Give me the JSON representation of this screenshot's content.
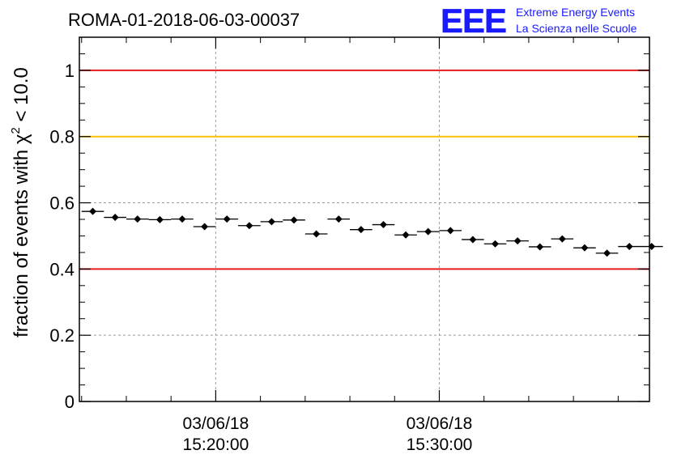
{
  "chart_data": {
    "type": "scatter",
    "title": "ROMA-01-2018-06-03-00037",
    "ylabel": "fraction of events with χ² < 10.0",
    "ylabel_parts": {
      "before": "fraction of events with χ",
      "superscript": "2",
      "after": " < 10.0"
    },
    "xlabel": "",
    "ylim": [
      0,
      1.1
    ],
    "xlim": [
      -6.1,
      19.4
    ],
    "x_unit": "minutes relative to 03/06/18 15:20:00",
    "yticks": [
      0,
      0.2,
      0.4,
      0.6,
      0.8,
      1
    ],
    "ytick_labels": [
      "0",
      "0.2",
      "0.4",
      "0.6",
      "0.8",
      "1"
    ],
    "xticks": [
      {
        "x": 0,
        "date": "03/06/18",
        "time": "15:20:00"
      },
      {
        "x": 10,
        "date": "03/06/18",
        "time": "15:30:00"
      }
    ],
    "grid": true,
    "reference_lines": [
      {
        "y": 1.0,
        "color": "#e41a1c"
      },
      {
        "y": 0.8,
        "color": "#ffc000"
      },
      {
        "y": 0.4,
        "color": "#e41a1c"
      }
    ],
    "series": [
      {
        "x_start": -5.5,
        "x_step": 1,
        "x_halfwidth": 0.5,
        "y_error": 0.008,
        "values": [
          0.574,
          0.556,
          0.551,
          0.549,
          0.551,
          0.528,
          0.551,
          0.531,
          0.543,
          0.548,
          0.506,
          0.551,
          0.519,
          0.534,
          0.503,
          0.513,
          0.516,
          0.489,
          0.476,
          0.485,
          0.467,
          0.491,
          0.464,
          0.448,
          0.468,
          0.468
        ]
      }
    ]
  },
  "logo": {
    "mark": "EEE",
    "line1": "Extreme Energy Events",
    "line2": "La Scienza nelle Scuole",
    "color": "#1a1aff"
  }
}
